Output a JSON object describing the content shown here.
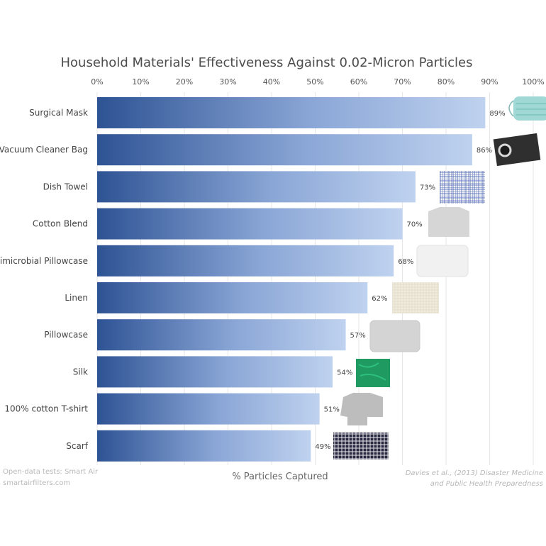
{
  "chart_data": {
    "type": "bar",
    "orientation": "horizontal",
    "title": "Household Materials' Effectiveness Against 0.02-Micron Particles",
    "xlabel": "% Particles Captured",
    "ylabel": "",
    "xlim": [
      0,
      100
    ],
    "ticks": [
      "0%",
      "10%",
      "20%",
      "30%",
      "40%",
      "50%",
      "60%",
      "70%",
      "80%",
      "90%",
      "100%"
    ],
    "grid": true,
    "categories": [
      "Surgical Mask",
      "Vacuum Cleaner Bag",
      "Dish Towel",
      "Cotton Blend",
      "Antimicrobial Pillowcase",
      "Linen",
      "Pillowcase",
      "Silk",
      "100% cotton T-shirt",
      "Scarf"
    ],
    "values": [
      89,
      86,
      73,
      70,
      68,
      62,
      57,
      54,
      51,
      49
    ],
    "value_labels": [
      "89%",
      "86%",
      "73%",
      "70%",
      "68%",
      "62%",
      "57%",
      "54%",
      "51%",
      "49%"
    ],
    "bar_colors": {
      "start": "#2e5394",
      "end": "#bfd2ef"
    },
    "thumbnails": [
      "surgical-mask-photo",
      "vacuum-bag-photo",
      "dish-towel-photo",
      "cotton-blend-photo",
      "antimicrobial-pillowcase-photo",
      "linen-photo",
      "pillowcase-photo",
      "silk-photo",
      "t-shirt-photo",
      "scarf-photo"
    ]
  },
  "source_left": [
    "Open-data tests: Smart Air",
    "smartairfilters.com"
  ],
  "source_right": [
    "Davies et al., (2013) Disaster Medicine",
    "and Public Health Preparedness"
  ]
}
